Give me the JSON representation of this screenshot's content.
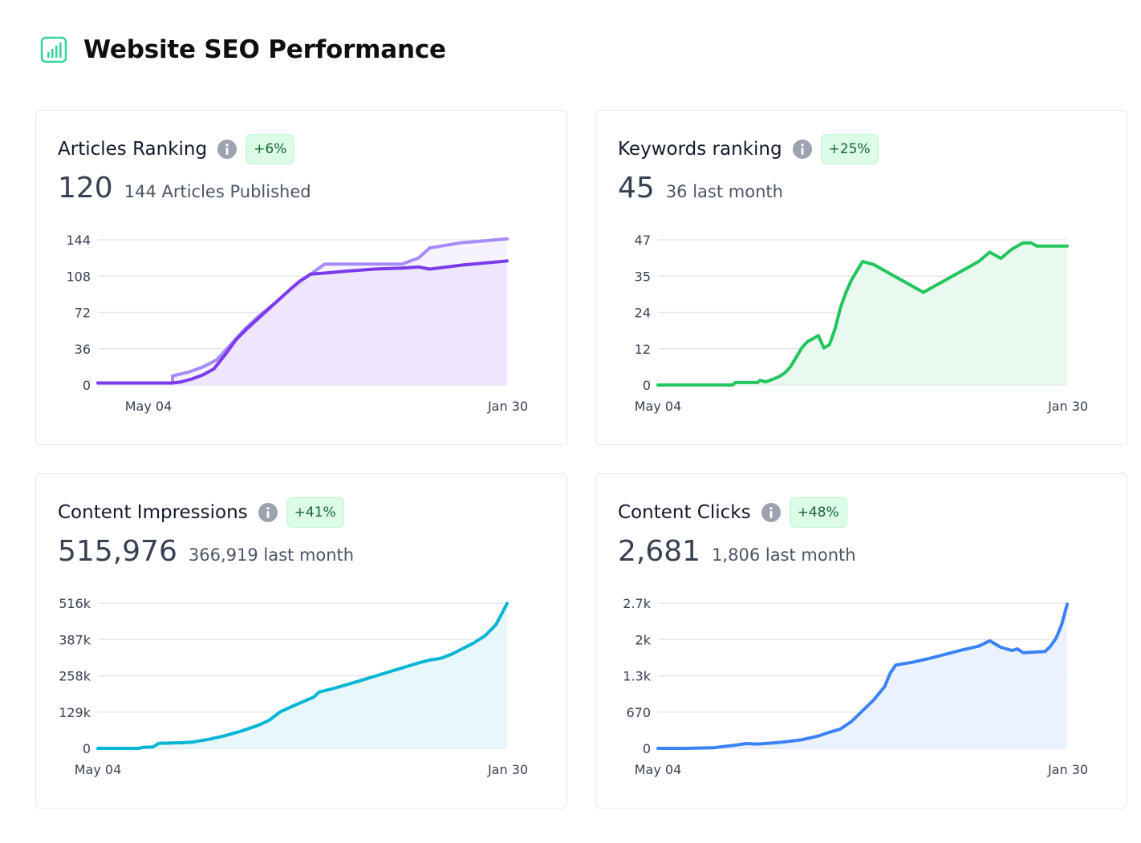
{
  "page": {
    "title": "Website SEO Performance"
  },
  "colors": {
    "header_icon": "#34d399",
    "info_icon": "#9ca3af"
  },
  "cards": [
    {
      "title": "Articles Ranking",
      "badge": "+6%",
      "value": "120",
      "sub": "144 Articles Published",
      "chart_data": {
        "type": "line",
        "x_ticks": [
          "May 04",
          "Jan 30"
        ],
        "ylim": [
          0,
          144
        ],
        "y_ticks": [
          "144",
          "108",
          "72",
          "36",
          "0"
        ],
        "color": "#8b5cf6",
        "series": [
          {
            "color": "#a78bfa",
            "fill": "#f5f0ff",
            "values": [
              [
                0,
                2
              ],
              [
                27,
                2
              ],
              [
                27,
                9
              ],
              [
                33,
                13
              ],
              [
                38,
                18
              ],
              [
                43,
                25
              ],
              [
                48,
                40
              ],
              [
                53,
                55
              ],
              [
                58,
                68
              ],
              [
                63,
                79
              ],
              [
                68,
                90
              ],
              [
                73,
                100
              ],
              [
                77,
                110
              ],
              [
                82,
                120
              ],
              [
                100,
                120
              ],
              [
                110,
                120
              ],
              [
                116,
                126
              ],
              [
                120,
                136
              ],
              [
                131,
                141
              ],
              [
                140,
                143
              ],
              [
                148,
                145
              ]
            ]
          },
          {
            "color": "#7c3aed",
            "fill": "#ede4fd",
            "values": [
              [
                0,
                2
              ],
              [
                27,
                2
              ],
              [
                30,
                3
              ],
              [
                34,
                6
              ],
              [
                38,
                10
              ],
              [
                42,
                16
              ],
              [
                46,
                30
              ],
              [
                50,
                45
              ],
              [
                54,
                56
              ],
              [
                58,
                66
              ],
              [
                62,
                76
              ],
              [
                66,
                86
              ],
              [
                70,
                96
              ],
              [
                73,
                103
              ],
              [
                77,
                110
              ],
              [
                82,
                111
              ],
              [
                90,
                113
              ],
              [
                100,
                115
              ],
              [
                110,
                116
              ],
              [
                116,
                117
              ],
              [
                120,
                115
              ],
              [
                132,
                119
              ],
              [
                140,
                121
              ],
              [
                148,
                123
              ]
            ]
          }
        ]
      }
    },
    {
      "title": "Keywords ranking",
      "badge": "+25%",
      "value": "45",
      "sub": "36 last month",
      "chart_data": {
        "type": "line",
        "x_ticks": [
          "May 04",
          "Jan 30"
        ],
        "ylim": [
          0,
          47
        ],
        "y_ticks": [
          "47",
          "35",
          "24",
          "12",
          "0"
        ],
        "color": "#22c55e",
        "fill": "#e6f8ec",
        "values": [
          [
            0,
            0
          ],
          [
            27,
            0
          ],
          [
            28,
            0.8
          ],
          [
            34,
            0.8
          ],
          [
            36,
            0.8
          ],
          [
            37,
            1.5
          ],
          [
            39,
            1
          ],
          [
            42,
            2
          ],
          [
            44,
            2.8
          ],
          [
            46,
            4
          ],
          [
            48,
            6
          ],
          [
            50,
            9
          ],
          [
            52,
            12
          ],
          [
            54,
            14
          ],
          [
            56,
            15
          ],
          [
            58,
            16
          ],
          [
            60,
            12
          ],
          [
            62,
            13
          ],
          [
            64,
            18
          ],
          [
            66,
            25
          ],
          [
            68,
            30
          ],
          [
            70,
            34
          ],
          [
            72,
            37
          ],
          [
            74,
            40
          ],
          [
            78,
            39
          ],
          [
            82,
            37
          ],
          [
            86,
            35
          ],
          [
            90,
            33
          ],
          [
            94,
            31
          ],
          [
            96,
            30
          ],
          [
            100,
            32
          ],
          [
            104,
            34
          ],
          [
            108,
            36
          ],
          [
            112,
            38
          ],
          [
            116,
            40
          ],
          [
            120,
            43
          ],
          [
            124,
            41
          ],
          [
            128,
            44
          ],
          [
            132,
            46
          ],
          [
            135,
            46
          ],
          [
            137,
            45
          ],
          [
            140,
            45
          ],
          [
            144,
            45
          ],
          [
            148,
            45
          ]
        ]
      }
    },
    {
      "title": "Content Impressions",
      "badge": "+41%",
      "value": "515,976",
      "sub": "366,919 last month",
      "chart_data": {
        "type": "line",
        "x_ticks": [
          "May 04",
          "Jan 30"
        ],
        "ylim": [
          0,
          516000
        ],
        "y_ticks": [
          "516k",
          "387k",
          "258k",
          "129k",
          "0"
        ],
        "color": "#06b6d4",
        "fill": "#e3f6f9",
        "values": [
          [
            0,
            0
          ],
          [
            15,
            0
          ],
          [
            16,
            3000
          ],
          [
            20,
            5000
          ],
          [
            22,
            18000
          ],
          [
            30,
            20000
          ],
          [
            34,
            22000
          ],
          [
            40,
            32000
          ],
          [
            46,
            45000
          ],
          [
            52,
            62000
          ],
          [
            58,
            82000
          ],
          [
            62,
            100000
          ],
          [
            66,
            130000
          ],
          [
            70,
            148000
          ],
          [
            74,
            165000
          ],
          [
            78,
            182000
          ],
          [
            80,
            200000
          ],
          [
            86,
            215000
          ],
          [
            92,
            232000
          ],
          [
            98,
            250000
          ],
          [
            104,
            268000
          ],
          [
            110,
            286000
          ],
          [
            116,
            304000
          ],
          [
            120,
            314000
          ],
          [
            124,
            320000
          ],
          [
            128,
            335000
          ],
          [
            132,
            355000
          ],
          [
            136,
            375000
          ],
          [
            140,
            400000
          ],
          [
            144,
            440000
          ],
          [
            148,
            515000
          ]
        ]
      }
    },
    {
      "title": "Content Clicks",
      "badge": "+48%",
      "value": "2,681",
      "sub": "1,806 last month",
      "chart_data": {
        "type": "line",
        "x_ticks": [
          "May 04",
          "Jan 30"
        ],
        "ylim": [
          0,
          2700
        ],
        "y_ticks": [
          "2.7k",
          "2k",
          "1.3k",
          "670",
          "0"
        ],
        "color": "#3b82f6",
        "fill": "#e8f0fe",
        "values": [
          [
            0,
            0
          ],
          [
            10,
            0
          ],
          [
            20,
            10
          ],
          [
            28,
            60
          ],
          [
            32,
            90
          ],
          [
            36,
            80
          ],
          [
            44,
            110
          ],
          [
            52,
            160
          ],
          [
            58,
            230
          ],
          [
            62,
            300
          ],
          [
            66,
            360
          ],
          [
            70,
            500
          ],
          [
            74,
            700
          ],
          [
            78,
            900
          ],
          [
            82,
            1150
          ],
          [
            84,
            1400
          ],
          [
            86,
            1550
          ],
          [
            92,
            1600
          ],
          [
            98,
            1670
          ],
          [
            104,
            1750
          ],
          [
            110,
            1830
          ],
          [
            116,
            1900
          ],
          [
            118,
            1950
          ],
          [
            120,
            2000
          ],
          [
            124,
            1880
          ],
          [
            128,
            1820
          ],
          [
            130,
            1850
          ],
          [
            132,
            1780
          ],
          [
            136,
            1790
          ],
          [
            140,
            1800
          ],
          [
            142,
            1900
          ],
          [
            144,
            2050
          ],
          [
            146,
            2300
          ],
          [
            148,
            2680
          ]
        ]
      }
    }
  ]
}
